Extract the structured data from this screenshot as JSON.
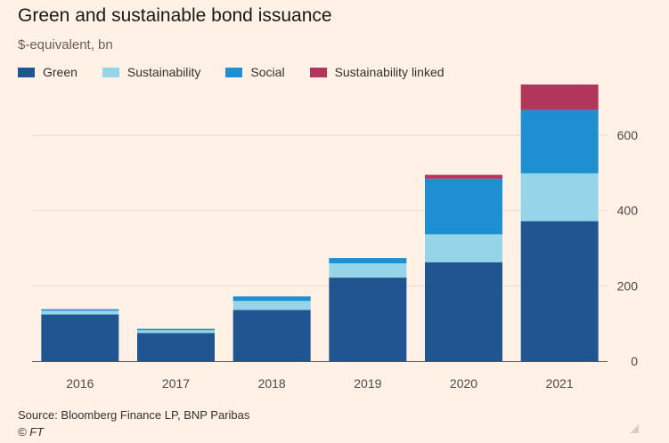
{
  "header": {
    "title": "Green and sustainable bond issuance",
    "subtitle": "$-equivalent, bn"
  },
  "footer": {
    "source": "Source: Bloomberg Finance LP, BNP Paribas",
    "credit": "© FT"
  },
  "chart_data": {
    "type": "bar",
    "stacked": true,
    "categories": [
      "2016",
      "2017",
      "2018",
      "2019",
      "2020",
      "2021"
    ],
    "series": [
      {
        "name": "Green",
        "color": "#1f5591",
        "values": [
          124,
          75,
          136,
          222,
          263,
          372
        ]
      },
      {
        "name": "Sustainability",
        "color": "#96d4ea",
        "values": [
          10,
          7,
          24,
          38,
          74,
          127
        ]
      },
      {
        "name": "Social",
        "color": "#1e8fd0",
        "values": [
          4,
          4,
          12,
          14,
          148,
          168
        ]
      },
      {
        "name": "Sustainability linked",
        "color": "#b2355b",
        "values": [
          0,
          0,
          0,
          0,
          10,
          68
        ]
      }
    ],
    "y_ticks": [
      0,
      200,
      400,
      600
    ],
    "ylim": [
      0,
      735
    ],
    "y_axis_position": "right",
    "grid": true,
    "legend_position": "top-left"
  }
}
